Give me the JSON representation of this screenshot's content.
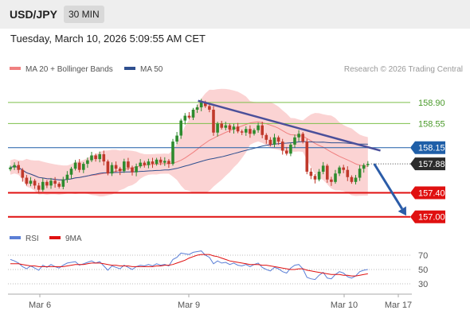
{
  "header": {
    "pair": "USD/JPY",
    "timeframe": "30 MIN",
    "datetime": "Tuesday, March 10, 2026 5:09:55 AM CET"
  },
  "legend": {
    "ma20": {
      "label": "MA 20 + Bollinger Bands",
      "color": "#f08080"
    },
    "ma50": {
      "label": "MA 50",
      "color": "#2f4f8f"
    },
    "credit": "Research © 2026 Trading Central"
  },
  "rsi_legend": {
    "rsi": {
      "label": "RSI",
      "color": "#5b7fd6"
    },
    "ma9": {
      "label": "9MA",
      "color": "#e01010"
    }
  },
  "colors": {
    "up": "#2e8b2e",
    "down": "#c0392b",
    "support": "#e01010",
    "resistance": "#7cbf4a",
    "pivot": "#1f5fa8",
    "trend": "#4a4f9a",
    "arrow": "#2b5ca8",
    "band": "#fbd3d3"
  },
  "levels": [
    {
      "value": 158.9,
      "label": "158.90",
      "kind": "resistance"
    },
    {
      "value": 158.55,
      "label": "158.55",
      "kind": "resistance"
    },
    {
      "value": 158.15,
      "label": "158.15",
      "kind": "pivot"
    },
    {
      "value": 157.88,
      "label": "157.88",
      "kind": "last"
    },
    {
      "value": 157.4,
      "label": "157.40",
      "kind": "support"
    },
    {
      "value": 157.0,
      "label": "157.00",
      "kind": "support"
    }
  ],
  "rsi_ticks": [
    "70",
    "50",
    "30"
  ],
  "x_ticks": [
    "Mar 6",
    "Mar 9",
    "Mar 10",
    "Mar 17"
  ],
  "chart_data": {
    "type": "candlestick",
    "ylim": [
      156.97,
      159.15
    ],
    "closes": [
      157.82,
      157.86,
      157.78,
      157.65,
      157.55,
      157.6,
      157.52,
      157.45,
      157.58,
      157.52,
      157.6,
      157.55,
      157.5,
      157.62,
      157.7,
      157.8,
      157.9,
      157.78,
      157.88,
      157.94,
      158.02,
      157.96,
      158.04,
      157.92,
      157.72,
      157.86,
      157.8,
      157.76,
      157.92,
      157.82,
      157.74,
      157.84,
      157.9,
      157.86,
      157.92,
      157.88,
      157.95,
      157.9,
      157.93,
      157.88,
      158.25,
      158.35,
      158.6,
      158.68,
      158.65,
      158.78,
      158.82,
      158.9,
      158.84,
      158.78,
      158.4,
      158.55,
      158.48,
      158.52,
      158.45,
      158.5,
      158.42,
      158.4,
      158.46,
      158.38,
      158.44,
      158.52,
      158.36,
      158.28,
      158.2,
      158.32,
      158.25,
      158.1,
      158.05,
      158.2,
      158.32,
      158.38,
      158.25,
      157.75,
      157.68,
      157.62,
      157.75,
      157.85,
      157.62,
      157.58,
      157.72,
      157.82,
      157.78,
      157.66,
      157.58,
      157.65,
      157.8,
      157.86,
      157.88
    ],
    "trendline": {
      "from": {
        "x": 0.4707,
        "y": 158.93
      },
      "to": {
        "x": 0.9222,
        "y": 158.1
      }
    },
    "forecast_arrow": {
      "from": 157.88,
      "to": 157.02
    },
    "rsi": [
      64,
      62,
      59,
      54,
      51,
      55,
      52,
      49,
      56,
      53,
      57,
      54,
      52,
      56,
      59,
      60,
      61,
      56,
      58,
      60,
      62,
      59,
      61,
      55,
      49,
      55,
      53,
      51,
      56,
      53,
      50,
      54,
      56,
      55,
      57,
      55,
      58,
      56,
      57,
      55,
      64,
      67,
      73,
      72,
      71,
      74,
      75,
      76,
      70,
      67,
      58,
      62,
      59,
      60,
      57,
      59,
      56,
      55,
      57,
      54,
      57,
      59,
      53,
      50,
      48,
      53,
      51,
      47,
      45,
      52,
      56,
      57,
      51,
      39,
      37,
      36,
      42,
      46,
      38,
      37,
      43,
      47,
      45,
      40,
      38,
      41,
      47,
      49,
      50
    ],
    "rsi_ma9": [
      58,
      58,
      58,
      57,
      56,
      55,
      55,
      54,
      54,
      54,
      54,
      54,
      54,
      54,
      55,
      56,
      57,
      57,
      57,
      58,
      59,
      59,
      59,
      58,
      57,
      56,
      56,
      55,
      55,
      55,
      54,
      54,
      54,
      54,
      54,
      54,
      55,
      55,
      56,
      56,
      57,
      59,
      61,
      63,
      66,
      68,
      70,
      71,
      71,
      71,
      69,
      68,
      66,
      64,
      62,
      61,
      60,
      59,
      58,
      57,
      57,
      57,
      56,
      56,
      55,
      54,
      53,
      52,
      51,
      50,
      50,
      51,
      51,
      49,
      48,
      47,
      46,
      45,
      44,
      43,
      43,
      43,
      42,
      42,
      41,
      41,
      42,
      43,
      44
    ]
  }
}
